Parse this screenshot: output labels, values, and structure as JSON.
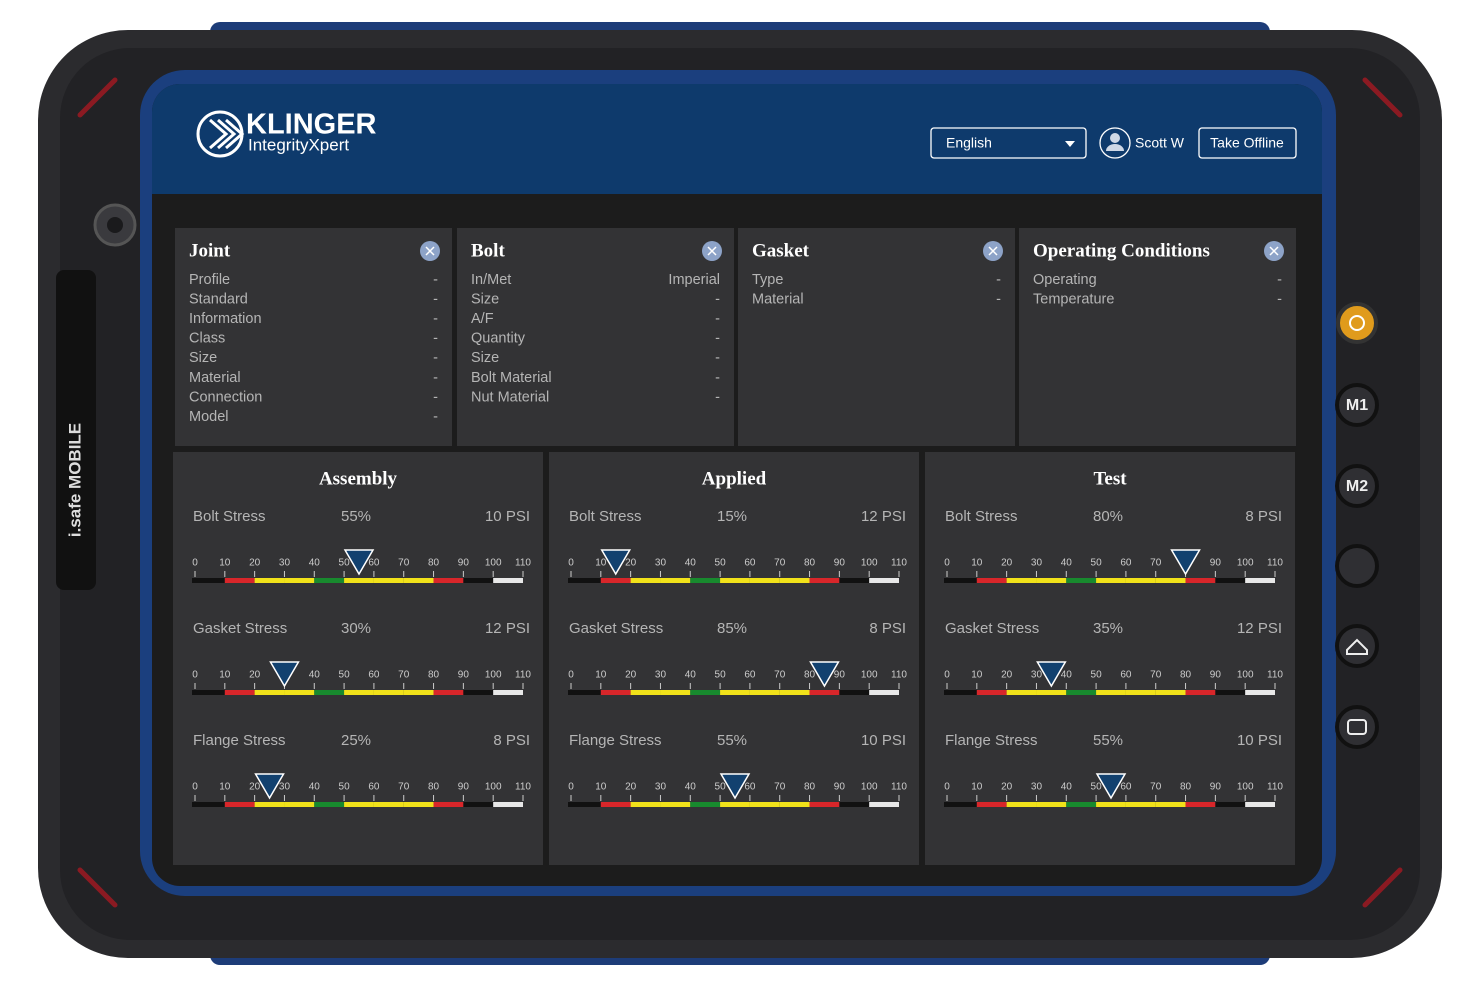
{
  "device": {
    "brand": "i.safe MOBILE",
    "buttons": [
      "M1",
      "M2"
    ]
  },
  "header": {
    "brand": "KLINGER",
    "product": "IntegrityXpert",
    "language": "English",
    "user": "Scott W",
    "action": "Take Offline"
  },
  "cards": [
    {
      "title": "Joint",
      "rows": [
        [
          "Profile",
          "-"
        ],
        [
          "Standard",
          "-"
        ],
        [
          "Information",
          "-"
        ],
        [
          "Class",
          "-"
        ],
        [
          "Size",
          "-"
        ],
        [
          "Material",
          "-"
        ],
        [
          "Connection",
          "-"
        ],
        [
          "Model",
          "-"
        ]
      ]
    },
    {
      "title": "Bolt",
      "rows": [
        [
          "In/Met",
          "Imperial"
        ],
        [
          "Size",
          "-"
        ],
        [
          "A/F",
          "-"
        ],
        [
          "Quantity",
          "-"
        ],
        [
          "Size",
          "-"
        ],
        [
          "Bolt Material",
          "-"
        ],
        [
          "Nut Material",
          "-"
        ]
      ]
    },
    {
      "title": "Gasket",
      "rows": [
        [
          "Type",
          "-"
        ],
        [
          "Material",
          "-"
        ]
      ]
    },
    {
      "title": "Operating Conditions",
      "rows": [
        [
          "Operating",
          "-"
        ],
        [
          "Temperature",
          "-"
        ]
      ]
    }
  ],
  "scale_ticks": [
    0,
    10,
    20,
    30,
    40,
    50,
    60,
    70,
    80,
    90,
    100,
    110
  ],
  "panels": [
    {
      "title": "Assembly",
      "gauges": [
        {
          "name": "Bolt Stress",
          "percent": {
            "value": 55,
            "label": "55%"
          },
          "pressure": "10 PSI"
        },
        {
          "name": "Gasket Stress",
          "percent": {
            "value": 30,
            "label": "30%"
          },
          "pressure": "12 PSI"
        },
        {
          "name": "Flange Stress",
          "percent": {
            "value": 25,
            "label": "25%"
          },
          "pressure": "8 PSI"
        }
      ]
    },
    {
      "title": "Applied",
      "gauges": [
        {
          "name": "Bolt Stress",
          "percent": {
            "value": 15,
            "label": "15%"
          },
          "pressure": "12 PSI"
        },
        {
          "name": "Gasket Stress",
          "percent": {
            "value": 85,
            "label": "85%"
          },
          "pressure": "8 PSI"
        },
        {
          "name": "Flange Stress",
          "percent": {
            "value": 55,
            "label": "55%"
          },
          "pressure": "10 PSI"
        }
      ]
    },
    {
      "title": "Test",
      "gauges": [
        {
          "name": "Bolt Stress",
          "percent": {
            "value": 80,
            "label": "80%"
          },
          "pressure": "8 PSI"
        },
        {
          "name": "Gasket Stress",
          "percent": {
            "value": 35,
            "label": "35%"
          },
          "pressure": "12 PSI"
        },
        {
          "name": "Flange Stress",
          "percent": {
            "value": 55,
            "label": "55%"
          },
          "pressure": "10 PSI"
        }
      ]
    }
  ]
}
